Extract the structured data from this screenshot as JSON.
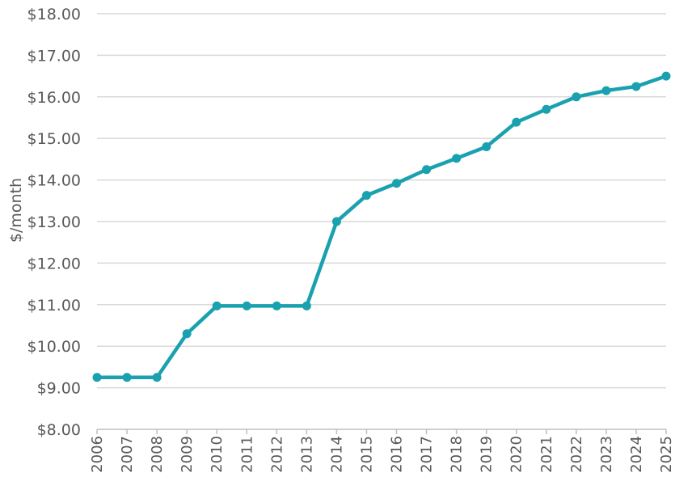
{
  "chart_data": {
    "type": "line",
    "title": "",
    "xlabel": "",
    "ylabel": "$/month",
    "ylim": [
      8,
      18
    ],
    "ytick_labels": [
      "$8.00",
      "$9.00",
      "$10.00",
      "$11.00",
      "$12.00",
      "$13.00",
      "$14.00",
      "$15.00",
      "$16.00",
      "$17.00",
      "$18.00"
    ],
    "yticks": [
      8,
      9,
      10,
      11,
      12,
      13,
      14,
      15,
      16,
      17,
      18
    ],
    "grid": true,
    "legend": "none",
    "x": [
      "2006",
      "2007",
      "2008",
      "2009",
      "2010",
      "2011",
      "2012",
      "2013",
      "2014",
      "2015",
      "2016",
      "2017",
      "2018",
      "2019",
      "2020",
      "2021",
      "2022",
      "2023",
      "2024",
      "2025"
    ],
    "series": [
      {
        "values": [
          9.25,
          9.25,
          9.25,
          10.3,
          10.97,
          10.97,
          10.97,
          10.97,
          13.0,
          13.63,
          13.92,
          14.25,
          14.52,
          14.8,
          15.39,
          15.7,
          16.0,
          16.15,
          16.25,
          16.5
        ],
        "color": "#1aa1b0"
      }
    ]
  },
  "colors": {
    "line": "#1aa1b0",
    "grid": "#d9d9d9",
    "text": "#595959"
  }
}
